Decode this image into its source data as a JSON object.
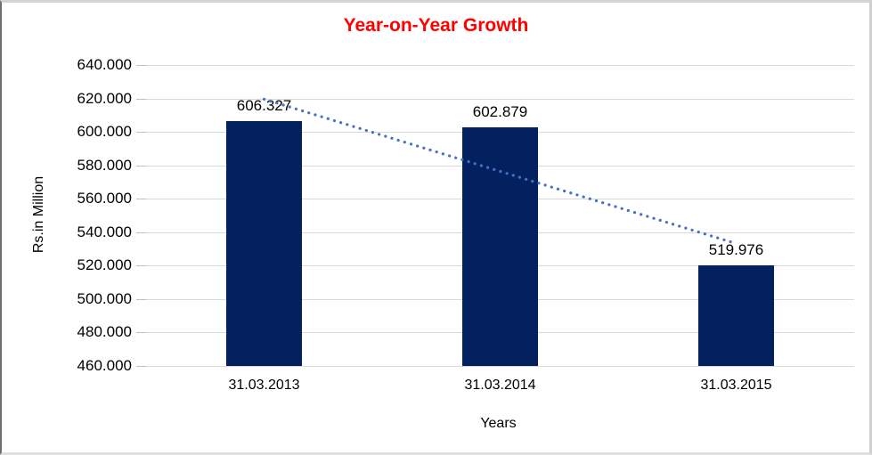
{
  "chart_data": {
    "type": "bar",
    "title": "Year-on-Year Growth",
    "title_color": "#FF0000",
    "xlabel": "Years",
    "ylabel": "Rs.in Million",
    "categories": [
      "31.03.2013",
      "31.03.2014",
      "31.03.2015"
    ],
    "values": [
      606.327,
      602.879,
      519.976
    ],
    "data_labels": [
      "606.327",
      "602.879",
      "519.976"
    ],
    "ylim": [
      460,
      640
    ],
    "ytick_step": 20,
    "yticks": [
      "640.000",
      "620.000",
      "600.000",
      "580.000",
      "560.000",
      "540.000",
      "520.000",
      "500.000",
      "480.000",
      "460.000"
    ],
    "grid": true,
    "legend": "none",
    "bar_color": "#03215F",
    "gridline_color": "#d9d9d9",
    "axis_line_color": "#d9d9d9",
    "trendline": {
      "type": "linear",
      "style": "dotted",
      "color": "#4472C4"
    }
  }
}
